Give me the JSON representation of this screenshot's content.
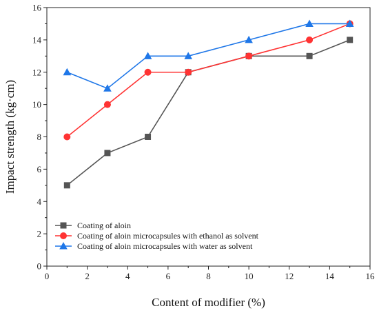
{
  "chart_data": {
    "type": "line",
    "xlabel": "Content of modifier (%)",
    "ylabel": "Impact strength (kg·cm)",
    "xlim": [
      0,
      16
    ],
    "ylim": [
      0,
      16
    ],
    "xticks": [
      0,
      2,
      4,
      6,
      8,
      10,
      12,
      14,
      16
    ],
    "yticks": [
      0,
      2,
      4,
      6,
      8,
      10,
      12,
      14,
      16
    ],
    "grid": false,
    "legend_position": "bottom-left",
    "x": [
      1,
      3,
      5,
      7,
      10,
      13,
      15
    ],
    "series": [
      {
        "name": "Coating of aloin",
        "values": [
          5,
          7,
          8,
          12,
          13,
          13,
          14
        ],
        "color": "#555555",
        "marker": "square"
      },
      {
        "name": "Coating of aloin microcapsules with ethanol as solvent",
        "values": [
          8,
          10,
          12,
          12,
          13,
          14,
          15
        ],
        "color": "#ff3333",
        "marker": "circle"
      },
      {
        "name": "Coating of aloin microcapsules with water as solvent",
        "values": [
          12,
          11,
          13,
          13,
          14,
          15,
          15
        ],
        "color": "#1f77e8",
        "marker": "triangle"
      }
    ]
  }
}
